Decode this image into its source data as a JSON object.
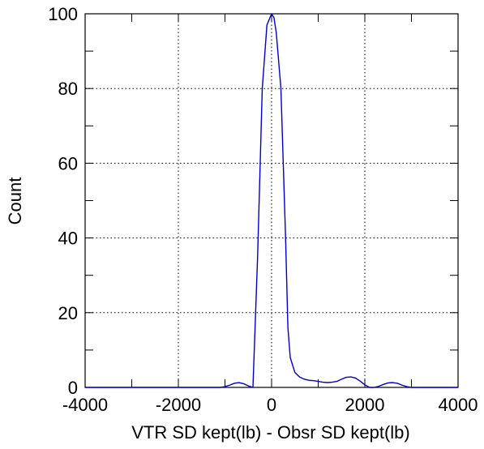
{
  "chart_data": {
    "type": "line",
    "title": "",
    "xlabel": "VTR SD kept(lb) - Obsr SD kept(lb)",
    "ylabel": "Count",
    "xlim": [
      -4000,
      4000
    ],
    "ylim": [
      0,
      100
    ],
    "x_ticks": [
      -4000,
      -2000,
      0,
      2000,
      4000
    ],
    "y_ticks": [
      0,
      20,
      40,
      60,
      80,
      100
    ],
    "x_tick_labels": [
      "-4000",
      "-2000",
      "0",
      "2000",
      "4000"
    ],
    "y_tick_labels": [
      "0",
      "20",
      "40",
      "60",
      "80",
      "100"
    ],
    "grid": true,
    "grid_style": "dotted",
    "line_color": "#0000cc",
    "series": [
      {
        "x": [
          -4000,
          -1100,
          -1000,
          -900,
          -800,
          -700,
          -600,
          -500,
          -400,
          -300,
          -200,
          -100,
          0,
          50,
          100,
          200,
          300,
          350,
          400,
          500,
          600,
          700,
          800,
          900,
          1000,
          1100,
          1200,
          1300,
          1400,
          1500,
          1600,
          1700,
          1800,
          1900,
          2000,
          2100,
          2200,
          2300,
          2400,
          2500,
          2600,
          2700,
          2800,
          2900,
          3000,
          3100,
          4000
        ],
        "y": [
          0,
          0,
          0.2,
          0.6,
          1.1,
          1.3,
          1.0,
          0.4,
          0,
          35,
          80,
          97,
          100,
          99,
          95,
          80,
          40,
          16,
          8,
          4,
          2.8,
          2.2,
          1.9,
          1.8,
          1.6,
          1.4,
          1.3,
          1.4,
          1.6,
          2.2,
          2.7,
          2.8,
          2.5,
          1.7,
          0.7,
          0,
          0,
          0.3,
          0.8,
          1.2,
          1.3,
          1.1,
          0.6,
          0.2,
          0,
          0,
          0
        ]
      }
    ]
  }
}
